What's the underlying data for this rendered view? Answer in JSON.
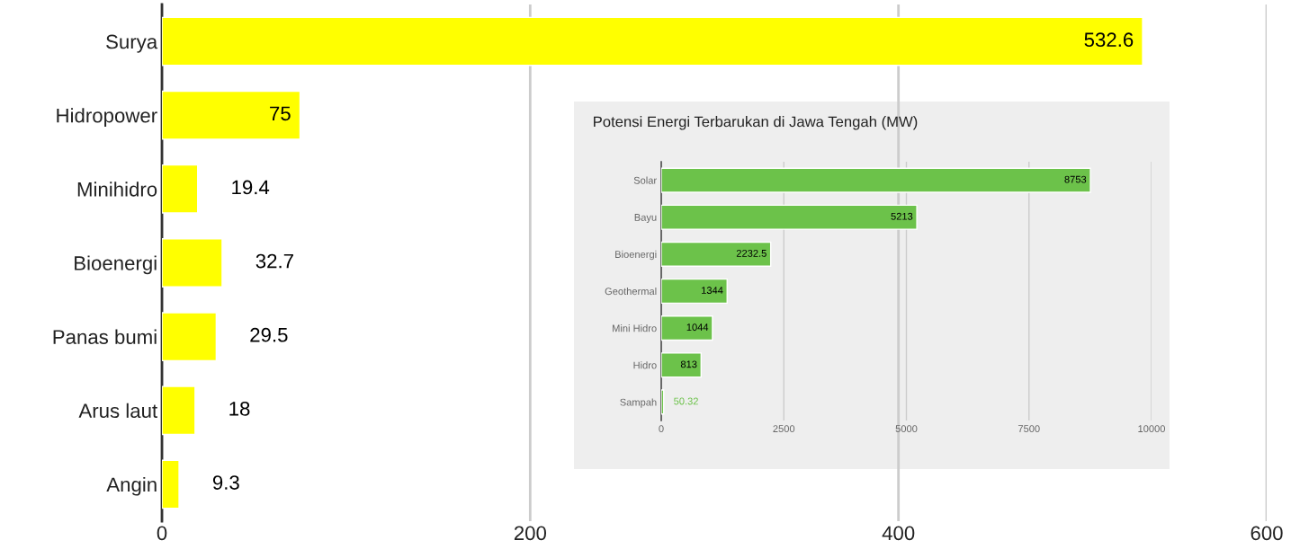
{
  "chart_data": [
    {
      "type": "bar",
      "orientation": "horizontal",
      "categories": [
        "Surya",
        "Hidropower",
        "Minihidro",
        "Bioenergi",
        "Panas bumi",
        "Arus laut",
        "Angin"
      ],
      "values": [
        532.6,
        75,
        19.4,
        32.7,
        29.5,
        18,
        9.3
      ],
      "color": "#ffff00",
      "xlim": [
        0,
        600
      ],
      "xticks": [
        0,
        200,
        400,
        600
      ],
      "grid": "x",
      "data_labels": true
    },
    {
      "type": "bar",
      "orientation": "horizontal",
      "title": "Potensi Energi Terbarukan di Jawa Tengah (MW)",
      "categories": [
        "Solar",
        "Bayu",
        "Bioenergi",
        "Geothermal",
        "Mini Hidro",
        "Hidro",
        "Sampah"
      ],
      "values": [
        8753,
        5213,
        2232.5,
        1344,
        1044,
        813,
        50.32
      ],
      "color": "#6cc24a",
      "xlim": [
        0,
        10000
      ],
      "xticks": [
        0,
        2500,
        5000,
        7500,
        10000
      ],
      "grid": "x",
      "data_labels": true
    }
  ]
}
